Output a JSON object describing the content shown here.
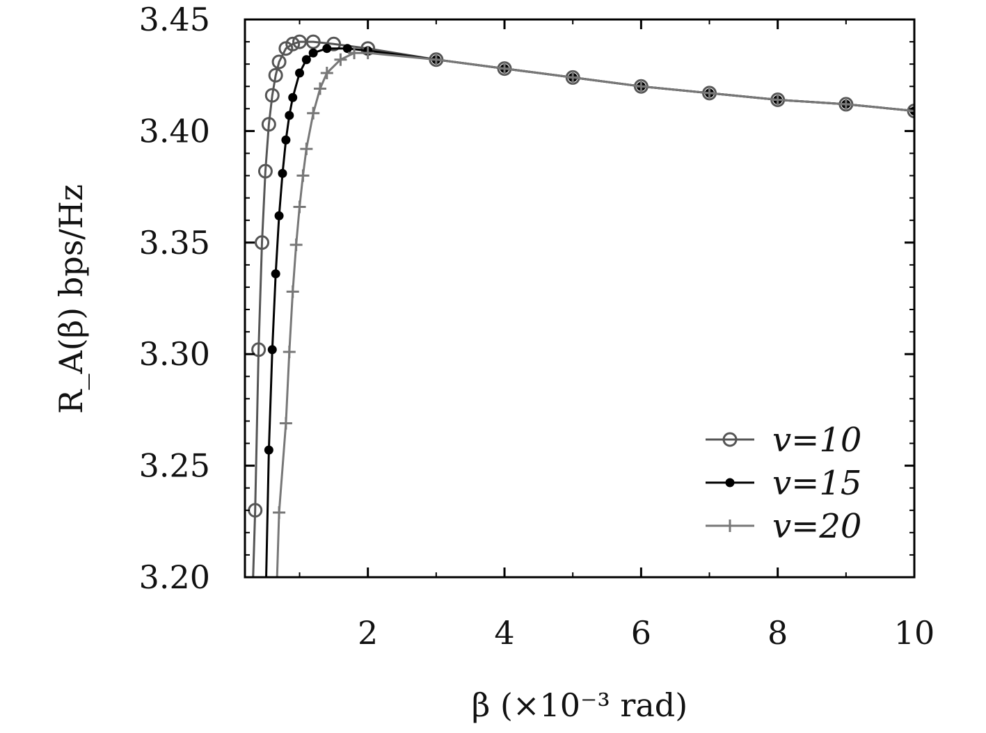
{
  "chart_data": {
    "type": "line",
    "xlabel": "β (×10⁻³ rad)",
    "ylabel": "R_A(β) bps/Hz",
    "xlim": [
      0.2,
      10
    ],
    "ylim": [
      3.2,
      3.45
    ],
    "x_ticks": [
      2,
      4,
      6,
      8,
      10
    ],
    "x_tick_labels": [
      "2",
      "4",
      "6",
      "8",
      "10"
    ],
    "y_ticks": [
      3.2,
      3.25,
      3.3,
      3.35,
      3.4,
      3.45
    ],
    "y_tick_labels": [
      "3.20",
      "3.25",
      "3.30",
      "3.35",
      "3.40",
      "3.45"
    ],
    "grid": false,
    "legend_position": "bottom-right",
    "series": [
      {
        "name": "v=10",
        "color": "#555555",
        "marker": "open-circle",
        "x": [
          0.35,
          0.4,
          0.45,
          0.5,
          0.55,
          0.6,
          0.65,
          0.7,
          0.8,
          0.9,
          1.0,
          1.2,
          1.5,
          2.0,
          3.0,
          4.0,
          5.0,
          6.0,
          7.0,
          8.0,
          9.0,
          10.0
        ],
        "y": [
          3.23,
          3.302,
          3.35,
          3.382,
          3.403,
          3.416,
          3.425,
          3.431,
          3.437,
          3.439,
          3.44,
          3.44,
          3.439,
          3.437,
          3.432,
          3.428,
          3.424,
          3.42,
          3.417,
          3.414,
          3.412,
          3.409
        ]
      },
      {
        "name": "v=15",
        "color": "#000000",
        "marker": "filled-dot",
        "x": [
          0.55,
          0.6,
          0.65,
          0.7,
          0.75,
          0.8,
          0.85,
          0.9,
          1.0,
          1.1,
          1.2,
          1.4,
          1.7,
          2.0,
          3.0,
          4.0,
          5.0,
          6.0,
          7.0,
          8.0,
          9.0,
          10.0
        ],
        "y": [
          3.257,
          3.302,
          3.336,
          3.362,
          3.381,
          3.396,
          3.407,
          3.415,
          3.426,
          3.432,
          3.435,
          3.437,
          3.437,
          3.436,
          3.432,
          3.428,
          3.424,
          3.42,
          3.417,
          3.414,
          3.412,
          3.409
        ]
      },
      {
        "name": "v=20",
        "color": "#777777",
        "marker": "plus",
        "x": [
          0.7,
          0.8,
          0.85,
          0.9,
          0.95,
          1.0,
          1.05,
          1.1,
          1.2,
          1.3,
          1.4,
          1.6,
          1.8,
          2.0,
          3.0,
          4.0,
          5.0,
          6.0,
          7.0,
          8.0,
          9.0,
          10.0
        ],
        "y": [
          3.229,
          3.269,
          3.301,
          3.328,
          3.349,
          3.366,
          3.38,
          3.392,
          3.408,
          3.419,
          3.426,
          3.432,
          3.435,
          3.435,
          3.432,
          3.428,
          3.424,
          3.42,
          3.417,
          3.414,
          3.412,
          3.409
        ]
      }
    ]
  }
}
